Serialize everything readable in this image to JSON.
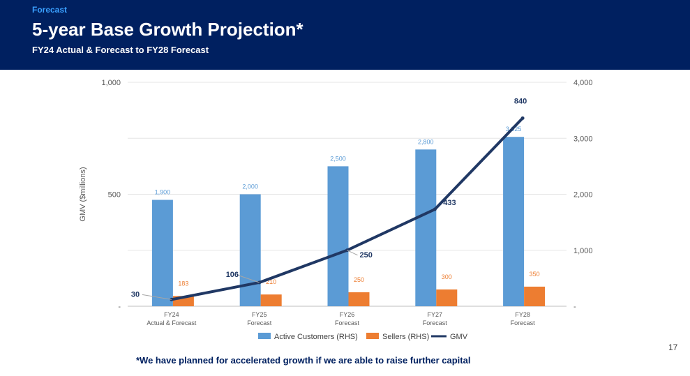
{
  "header": {
    "section": "Forecast",
    "title": "5-year Base Growth Projection*",
    "subtitle": "FY24 Actual & Forecast to FY28 Forecast"
  },
  "footnote": "*We have planned for accelerated growth if we are able to raise further capital",
  "page_number": "17",
  "colors": {
    "header_bg": "#002060",
    "section_label": "#3aa0ff",
    "active_customers": "#5b9bd5",
    "sellers": "#ed7d31",
    "gmv": "#203864"
  },
  "chart_data": {
    "type": "bar",
    "categories": [
      [
        "FY24",
        "Actual & Forecast"
      ],
      [
        "FY25",
        "Forecast"
      ],
      [
        "FY26",
        "Forecast"
      ],
      [
        "FY27",
        "Forecast"
      ],
      [
        "FY28",
        "Forecast"
      ]
    ],
    "ylabel": "GMV ($millions)",
    "ylim": [
      0,
      1000
    ],
    "y_ticks": [
      0,
      500,
      1000
    ],
    "y_tick_labels": [
      "-",
      "500",
      "1,000"
    ],
    "y2lim": [
      0,
      4000
    ],
    "y2_ticks": [
      0,
      1000,
      2000,
      3000,
      4000
    ],
    "y2_tick_labels": [
      "-",
      "1,000",
      "2,000",
      "3,000",
      "4,000"
    ],
    "grid": true,
    "legend_position": "bottom",
    "series": [
      {
        "name": "Active Customers (RHS)",
        "type": "bar",
        "axis": "right",
        "values": [
          1900,
          2000,
          2500,
          2800,
          3025
        ],
        "labels": [
          "1,900",
          "2,000",
          "2,500",
          "2,800",
          "3,025"
        ]
      },
      {
        "name": "Sellers (RHS)",
        "type": "bar",
        "axis": "right",
        "values": [
          183,
          210,
          250,
          300,
          350
        ],
        "labels": [
          "183",
          "210",
          "250",
          "300",
          "350"
        ]
      },
      {
        "name": "GMV",
        "type": "line",
        "axis": "left",
        "values": [
          30,
          106,
          250,
          433,
          840
        ],
        "labels": [
          "30",
          "106",
          "250",
          "433",
          "840"
        ]
      }
    ]
  }
}
